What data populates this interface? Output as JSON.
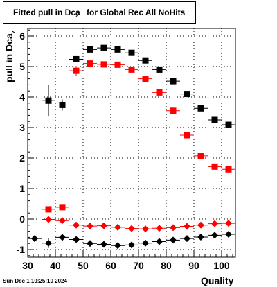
{
  "title": {
    "main": "Fitted pull in Dca",
    "sub": "z",
    "rest": " for Global Rec All NoHits"
  },
  "footer": "Sun Dec  1 10:25:10 2024",
  "chart_data": {
    "type": "scatter",
    "xlabel": "Quality",
    "ylabel_main": "pull in Dca",
    "ylabel_sub": "z",
    "xlim": [
      30,
      105
    ],
    "ylim": [
      -1.25,
      6.25
    ],
    "x_ticks": [
      30,
      40,
      50,
      60,
      70,
      80,
      90,
      100
    ],
    "y_ticks": [
      -1,
      0,
      1,
      2,
      3,
      4,
      5,
      6
    ],
    "grid": true,
    "colors": {
      "black": "#000000",
      "red": "#ff0000"
    },
    "x": [
      37.5,
      42.5,
      47.5,
      52.5,
      57.5,
      62.5,
      67.5,
      72.5,
      77.5,
      82.5,
      87.5,
      92.5,
      97.5,
      102.5
    ],
    "series": [
      {
        "marker": "square",
        "color": "#000000",
        "y": [
          3.88,
          3.74,
          5.24,
          5.56,
          5.61,
          5.56,
          5.45,
          5.2,
          4.9,
          4.52,
          4.1,
          3.63,
          3.25,
          3.09
        ],
        "err": [
          0.52,
          0.18,
          0.08,
          0.07,
          0.06,
          0.06,
          0.06,
          0.05,
          0.05,
          0.05,
          0.05,
          0.05,
          0.05,
          0.05
        ]
      },
      {
        "marker": "square",
        "color": "#ff0000",
        "y": [
          0.32,
          0.39,
          4.86,
          5.1,
          5.07,
          5.06,
          4.9,
          4.6,
          4.15,
          3.55,
          2.75,
          2.07,
          1.72,
          1.63
        ],
        "err": [
          0.06,
          0.06,
          0.16,
          0.07,
          0.05,
          0.05,
          0.05,
          0.05,
          0.05,
          0.05,
          0.05,
          0.05,
          0.05,
          0.05
        ]
      },
      {
        "marker": "diamond",
        "color": "#ff0000",
        "y": [
          -0.01,
          -0.05,
          -0.2,
          -0.23,
          -0.22,
          -0.27,
          -0.31,
          -0.32,
          -0.3,
          -0.28,
          -0.24,
          -0.2,
          -0.15,
          -0.14
        ],
        "err": [
          0.05,
          0.05,
          0.04,
          0.04,
          0.04,
          0.04,
          0.04,
          0.04,
          0.04,
          0.04,
          0.04,
          0.04,
          0.04,
          0.04
        ]
      },
      {
        "marker": "diamond",
        "color": "#000000",
        "y": [
          -0.79,
          -0.6,
          -0.67,
          -0.8,
          -0.83,
          -0.87,
          -0.85,
          -0.79,
          -0.74,
          -0.69,
          -0.64,
          -0.59,
          -0.53,
          -0.5
        ],
        "err": [
          0.16,
          0.08,
          0.05,
          0.04,
          0.04,
          0.04,
          0.04,
          0.04,
          0.04,
          0.04,
          0.04,
          0.04,
          0.04,
          0.04
        ]
      },
      {
        "marker": "diamond",
        "color": "#000000",
        "note_free": true,
        "x": [
          32.5
        ],
        "y": [
          -0.64
        ],
        "err": [
          0.1
        ]
      }
    ]
  }
}
